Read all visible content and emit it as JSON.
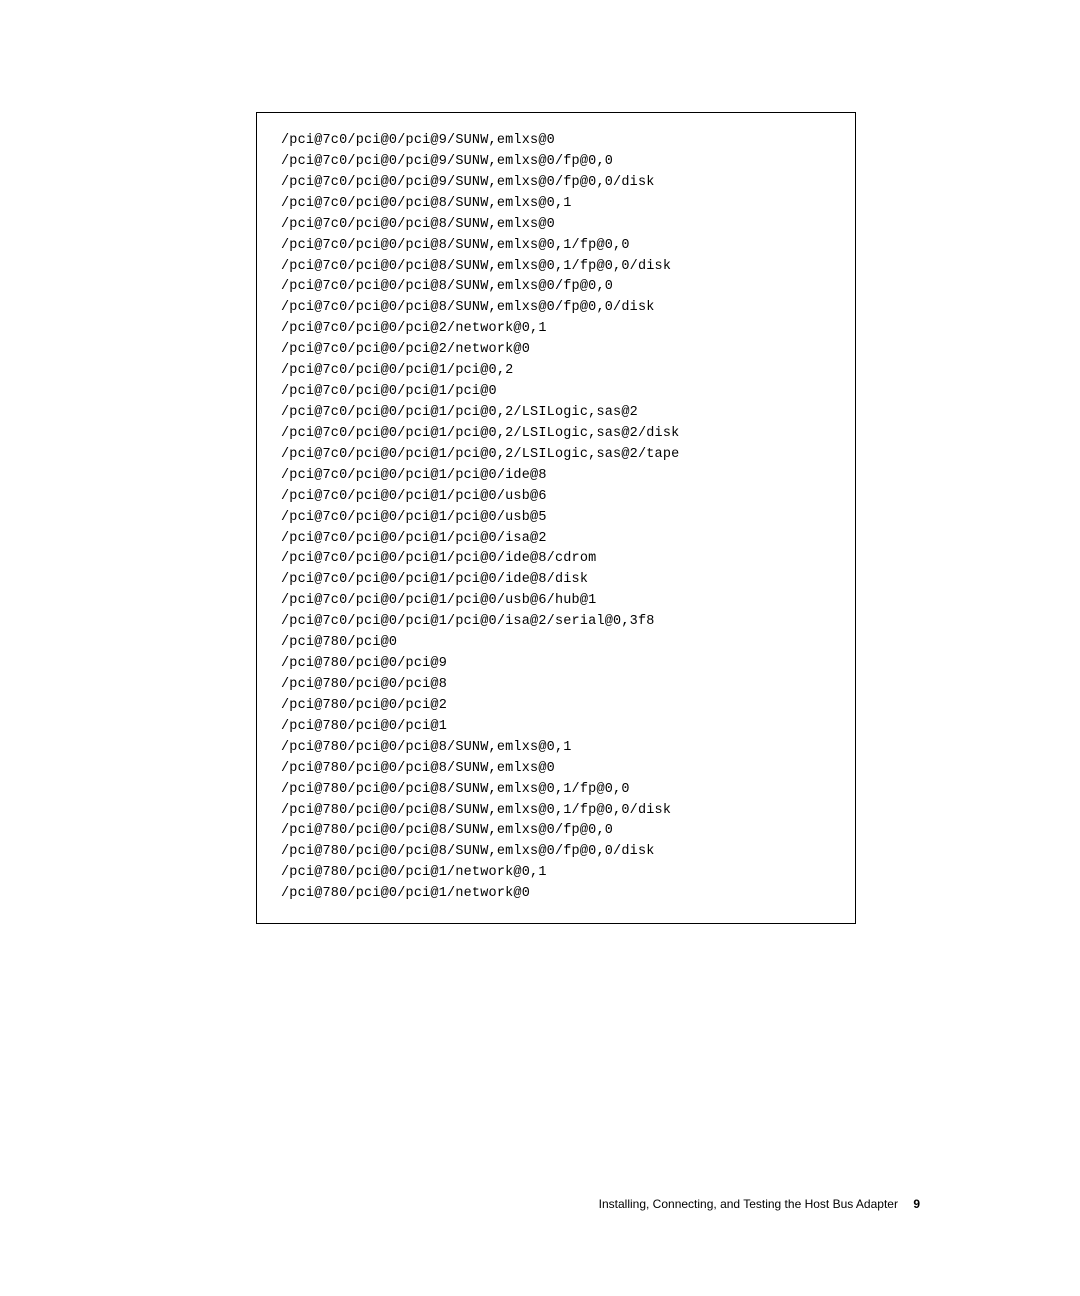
{
  "code": {
    "lines": [
      "/pci@7c0/pci@0/pci@9/SUNW,emlxs@0",
      "/pci@7c0/pci@0/pci@9/SUNW,emlxs@0/fp@0,0",
      "/pci@7c0/pci@0/pci@9/SUNW,emlxs@0/fp@0,0/disk",
      "/pci@7c0/pci@0/pci@8/SUNW,emlxs@0,1",
      "/pci@7c0/pci@0/pci@8/SUNW,emlxs@0",
      "/pci@7c0/pci@0/pci@8/SUNW,emlxs@0,1/fp@0,0",
      "/pci@7c0/pci@0/pci@8/SUNW,emlxs@0,1/fp@0,0/disk",
      "/pci@7c0/pci@0/pci@8/SUNW,emlxs@0/fp@0,0",
      "/pci@7c0/pci@0/pci@8/SUNW,emlxs@0/fp@0,0/disk",
      "/pci@7c0/pci@0/pci@2/network@0,1",
      "/pci@7c0/pci@0/pci@2/network@0",
      "/pci@7c0/pci@0/pci@1/pci@0,2",
      "/pci@7c0/pci@0/pci@1/pci@0",
      "/pci@7c0/pci@0/pci@1/pci@0,2/LSILogic,sas@2",
      "/pci@7c0/pci@0/pci@1/pci@0,2/LSILogic,sas@2/disk",
      "/pci@7c0/pci@0/pci@1/pci@0,2/LSILogic,sas@2/tape",
      "/pci@7c0/pci@0/pci@1/pci@0/ide@8",
      "/pci@7c0/pci@0/pci@1/pci@0/usb@6",
      "/pci@7c0/pci@0/pci@1/pci@0/usb@5",
      "/pci@7c0/pci@0/pci@1/pci@0/isa@2",
      "/pci@7c0/pci@0/pci@1/pci@0/ide@8/cdrom",
      "/pci@7c0/pci@0/pci@1/pci@0/ide@8/disk",
      "/pci@7c0/pci@0/pci@1/pci@0/usb@6/hub@1",
      "/pci@7c0/pci@0/pci@1/pci@0/isa@2/serial@0,3f8",
      "/pci@780/pci@0",
      "/pci@780/pci@0/pci@9",
      "/pci@780/pci@0/pci@8",
      "/pci@780/pci@0/pci@2",
      "/pci@780/pci@0/pci@1",
      "/pci@780/pci@0/pci@8/SUNW,emlxs@0,1",
      "/pci@780/pci@0/pci@8/SUNW,emlxs@0",
      "/pci@780/pci@0/pci@8/SUNW,emlxs@0,1/fp@0,0",
      "/pci@780/pci@0/pci@8/SUNW,emlxs@0,1/fp@0,0/disk",
      "/pci@780/pci@0/pci@8/SUNW,emlxs@0/fp@0,0",
      "/pci@780/pci@0/pci@8/SUNW,emlxs@0/fp@0,0/disk",
      "/pci@780/pci@0/pci@1/network@0,1",
      "/pci@780/pci@0/pci@1/network@0"
    ]
  },
  "footer": {
    "text": "Installing, Connecting, and Testing the Host Bus Adapter",
    "page_number": "9"
  }
}
